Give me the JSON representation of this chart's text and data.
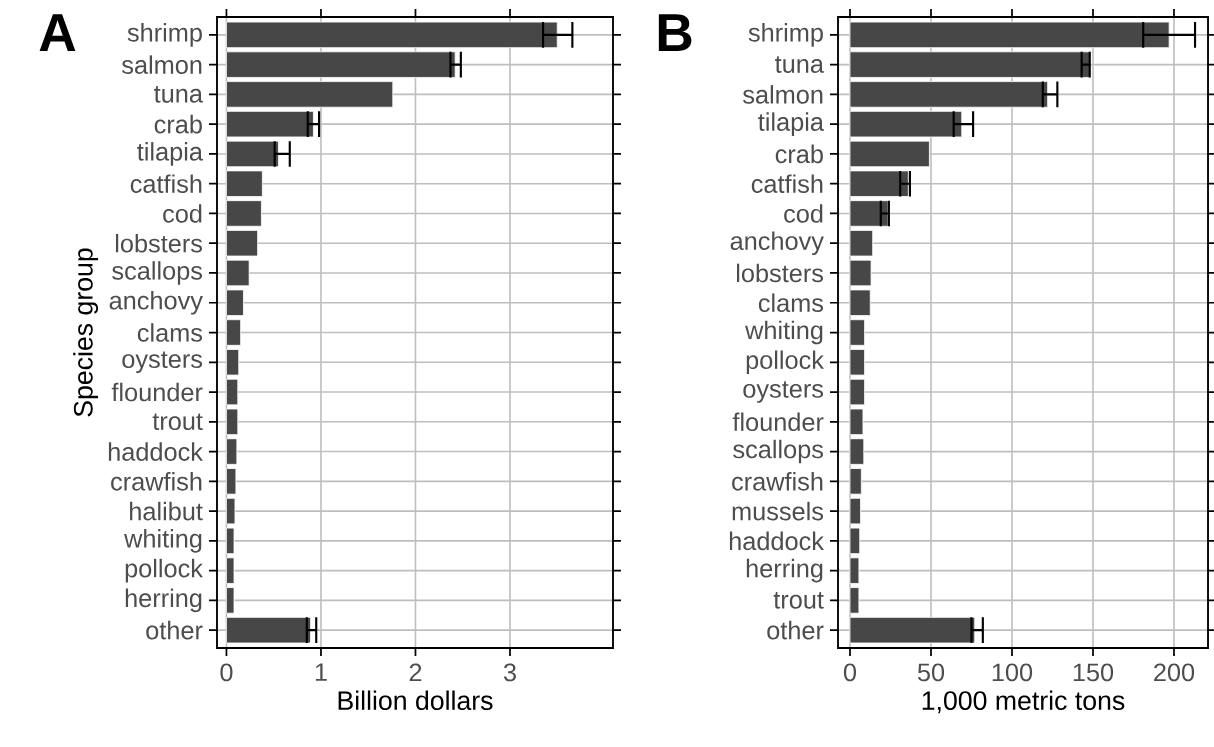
{
  "chart_data": [
    {
      "type": "bar",
      "orientation": "horizontal",
      "title": "A",
      "ylabel": "Species group",
      "xlabel": "Billion dollars",
      "categories": [
        "shrimp",
        "salmon",
        "tuna",
        "crab",
        "tilapia",
        "catfish",
        "cod",
        "lobsters",
        "scallops",
        "anchovy",
        "clams",
        "oysters",
        "flounder",
        "trout",
        "haddock",
        "crawfish",
        "halibut",
        "whiting",
        "pollock",
        "herring",
        "other"
      ],
      "values": [
        3.5,
        2.42,
        1.76,
        0.92,
        0.55,
        0.38,
        0.37,
        0.33,
        0.24,
        0.18,
        0.15,
        0.13,
        0.12,
        0.12,
        0.11,
        0.1,
        0.09,
        0.08,
        0.08,
        0.08,
        0.89
      ],
      "errors": [
        [
          3.35,
          3.66
        ],
        [
          2.37,
          2.48
        ],
        null,
        [
          0.86,
          0.98
        ],
        [
          0.51,
          0.67
        ],
        null,
        null,
        null,
        null,
        null,
        null,
        null,
        null,
        null,
        null,
        null,
        null,
        null,
        null,
        null,
        [
          0.85,
          0.95
        ]
      ],
      "color": "#474747",
      "xlim": [
        -0.1,
        4.09
      ],
      "xticks": [
        0,
        1,
        2,
        3
      ],
      "grid": true
    },
    {
      "type": "bar",
      "orientation": "horizontal",
      "title": "B",
      "xlabel": "1,000 metric tons",
      "categories": [
        "shrimp",
        "tuna",
        "salmon",
        "tilapia",
        "crab",
        "catfish",
        "cod",
        "anchovy",
        "lobsters",
        "clams",
        "whiting",
        "pollock",
        "oysters",
        "flounder",
        "scallops",
        "crawfish",
        "mussels",
        "haddock",
        "herring",
        "trout",
        "other"
      ],
      "values": [
        197,
        148,
        122,
        69,
        49,
        36,
        23.5,
        14,
        13,
        12.5,
        9,
        9,
        9,
        8,
        8.5,
        7,
        6.5,
        6,
        5.5,
        5.5,
        77
      ],
      "errors": [
        [
          181,
          213
        ],
        [
          143,
          148
        ],
        [
          119,
          128
        ],
        [
          64,
          76
        ],
        null,
        [
          31,
          37
        ],
        [
          19,
          24
        ],
        null,
        null,
        null,
        null,
        null,
        null,
        null,
        null,
        null,
        null,
        null,
        null,
        null,
        [
          75,
          82
        ]
      ],
      "color": "#474747",
      "xlim": [
        -7.4,
        221
      ],
      "xticks": [
        0,
        50,
        100,
        150,
        200
      ],
      "grid": true
    }
  ]
}
